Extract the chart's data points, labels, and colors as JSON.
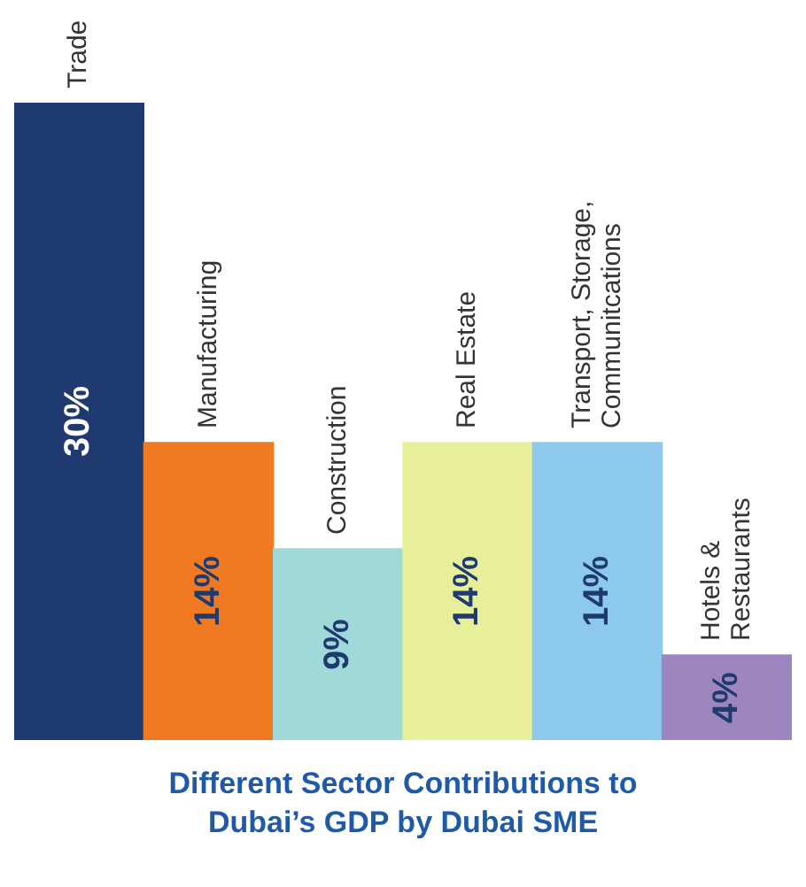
{
  "chart_data": {
    "type": "bar",
    "title": "Different Sector Contributions to Dubai’s GDP by Dubai SME",
    "categories": [
      "Trade",
      "Manufacturing",
      "Construction",
      "Real Estate",
      "Transport, Storage, Communitcations",
      "Hotels & Restaurants"
    ],
    "values": [
      30,
      14,
      9,
      14,
      14,
      4
    ],
    "colors": [
      "#1f3a6e",
      "#f07a22",
      "#9fd9d8",
      "#e8ef9a",
      "#8cc9ec",
      "#9d86c0"
    ],
    "value_labels": [
      "30%",
      "14%",
      "9%",
      "14%",
      "14%",
      "4%"
    ]
  }
}
